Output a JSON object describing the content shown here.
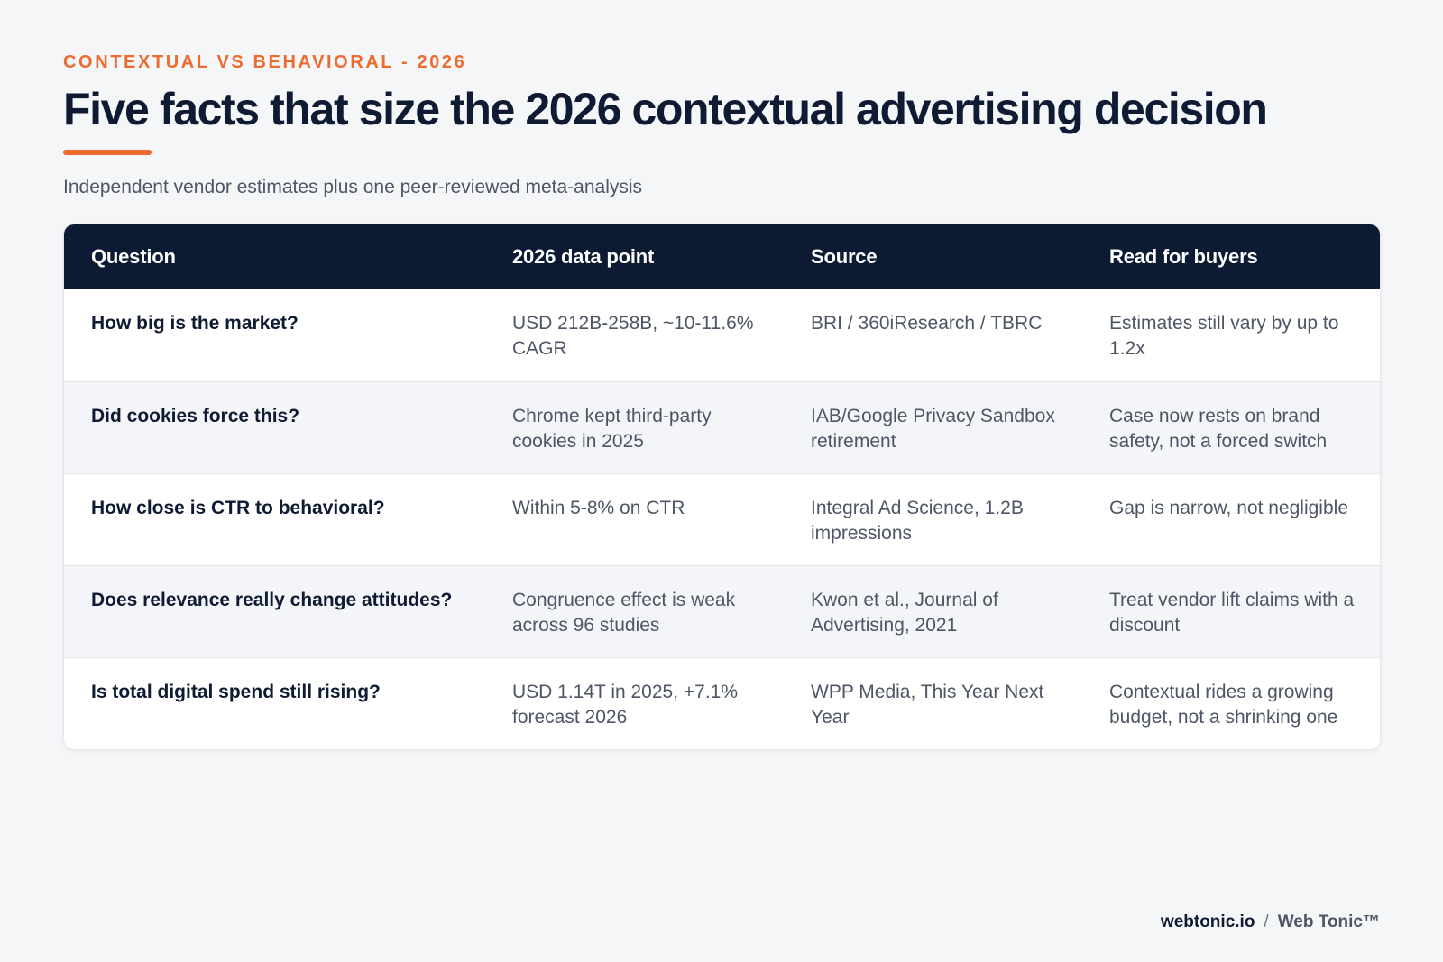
{
  "header": {
    "eyebrow": "CONTEXTUAL VS BEHAVIORAL - 2026",
    "title": "Five facts that size the 2026 contextual advertising decision",
    "subtitle": "Independent vendor estimates plus one peer-reviewed meta-analysis"
  },
  "table": {
    "columns": [
      "Question",
      "2026 data point",
      "Source",
      "Read for buyers"
    ],
    "rows": [
      {
        "question": "How big is the market?",
        "data_point": "USD 212B-258B, ~10-11.6% CAGR",
        "source": "BRI / 360iResearch / TBRC",
        "read": "Estimates still vary by up to 1.2x"
      },
      {
        "question": "Did cookies force this?",
        "data_point": "Chrome kept third-party cookies in 2025",
        "source": "IAB/Google Privacy Sandbox retirement",
        "read": "Case now rests on brand safety, not a forced switch"
      },
      {
        "question": "How close is CTR to behavioral?",
        "data_point": "Within 5-8% on CTR",
        "source": "Integral Ad Science, 1.2B impressions",
        "read": "Gap is narrow, not negligible"
      },
      {
        "question": "Does relevance really change attitudes?",
        "data_point": "Congruence effect is weak across 96 studies",
        "source": "Kwon et al., Journal of Advertising, 2021",
        "read": "Treat vendor lift claims with a discount"
      },
      {
        "question": "Is total digital spend still rising?",
        "data_point": "USD 1.14T in 2025, +7.1% forecast 2026",
        "source": "WPP Media, This Year Next Year",
        "read": "Contextual rides a growing budget, not a shrinking one"
      }
    ]
  },
  "footer": {
    "domain": "webtonic.io",
    "separator": "/",
    "brand": "Web Tonic™"
  },
  "colors": {
    "accent": "#ee6b2f",
    "navy": "#0d1a33",
    "background": "#f5f6f8"
  }
}
